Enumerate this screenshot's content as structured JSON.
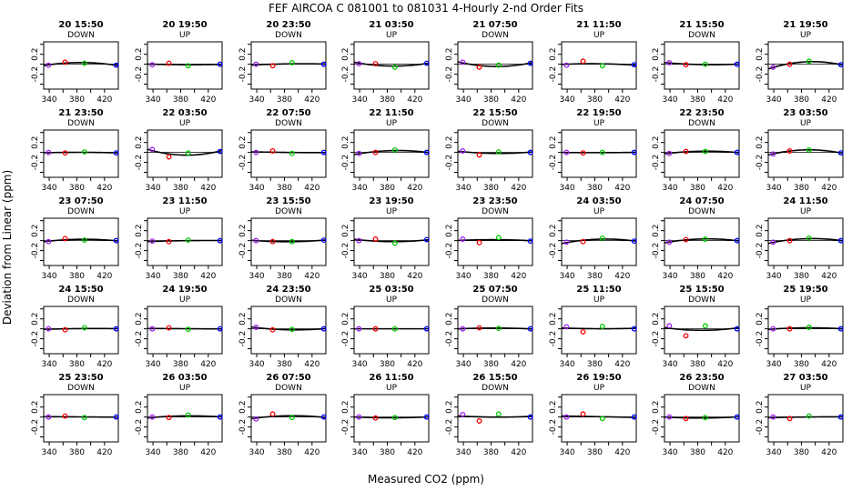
{
  "chart_data": {
    "type": "scatter",
    "title": "FEF   AIRCOA C   081001 to 081031   4-Hourly 2-nd Order Fits",
    "xlabel": "Measured CO2 (ppm)",
    "ylabel": "Deviation from Linear (ppm)",
    "xlim": [
      332,
      440
    ],
    "ylim": [
      -0.5,
      0.45
    ],
    "xticks": [
      "340",
      "380",
      "420"
    ],
    "xticks_minor": [
      "360",
      "400"
    ],
    "yticks": [
      "0.2",
      "-0.2"
    ],
    "yticks_minor": [
      "0.4",
      "0.0",
      "-0.4"
    ],
    "standards_x": [
      339,
      363,
      391,
      437
    ],
    "standard_colors": [
      "#a020f0",
      "#ff0000",
      "#00cc00",
      "#0000ff"
    ],
    "fit_color": "#000000",
    "panels": [
      {
        "label": "20 15:50",
        "dir": "DOWN",
        "dev": [
          -0.02,
          0.04,
          0.02,
          -0.02
        ]
      },
      {
        "label": "20 19:50",
        "dir": "UP",
        "dev": [
          -0.01,
          0.02,
          -0.03,
          0.0
        ]
      },
      {
        "label": "20 23:50",
        "dir": "DOWN",
        "dev": [
          0.0,
          -0.03,
          0.03,
          0.0
        ]
      },
      {
        "label": "21 03:50",
        "dir": "UP",
        "dev": [
          0.01,
          0.01,
          -0.06,
          0.02
        ]
      },
      {
        "label": "21 07:50",
        "dir": "DOWN",
        "dev": [
          0.04,
          -0.06,
          -0.02,
          0.02
        ]
      },
      {
        "label": "21 11:50",
        "dir": "UP",
        "dev": [
          -0.02,
          0.06,
          -0.03,
          -0.01
        ]
      },
      {
        "label": "21 15:50",
        "dir": "DOWN",
        "dev": [
          0.03,
          -0.01,
          0.0,
          0.0
        ]
      },
      {
        "label": "21 19:50",
        "dir": "UP",
        "dev": [
          -0.06,
          0.0,
          0.06,
          -0.01
        ]
      },
      {
        "label": "21 23:50",
        "dir": "DOWN",
        "dev": [
          0.0,
          -0.01,
          0.01,
          -0.01
        ]
      },
      {
        "label": "22 03:50",
        "dir": "UP",
        "dev": [
          0.06,
          -0.09,
          -0.01,
          0.02
        ]
      },
      {
        "label": "22 07:50",
        "dir": "DOWN",
        "dev": [
          0.0,
          0.03,
          -0.02,
          0.0
        ]
      },
      {
        "label": "22 11:50",
        "dir": "UP",
        "dev": [
          -0.02,
          0.0,
          0.05,
          0.0
        ]
      },
      {
        "label": "22 15:50",
        "dir": "DOWN",
        "dev": [
          0.03,
          -0.05,
          0.01,
          0.0
        ]
      },
      {
        "label": "22 19:50",
        "dir": "UP",
        "dev": [
          0.0,
          -0.01,
          0.0,
          0.0
        ]
      },
      {
        "label": "22 23:50",
        "dir": "DOWN",
        "dev": [
          -0.02,
          0.02,
          0.02,
          0.0
        ]
      },
      {
        "label": "23 03:50",
        "dir": "UP",
        "dev": [
          -0.03,
          0.03,
          0.05,
          -0.01
        ]
      },
      {
        "label": "23 07:50",
        "dir": "DOWN",
        "dev": [
          -0.02,
          0.04,
          0.01,
          0.0
        ]
      },
      {
        "label": "23 11:50",
        "dir": "UP",
        "dev": [
          -0.01,
          -0.02,
          0.01,
          0.0
        ]
      },
      {
        "label": "23 15:50",
        "dir": "DOWN",
        "dev": [
          0.0,
          -0.02,
          -0.02,
          0.01
        ]
      },
      {
        "label": "23 19:50",
        "dir": "UP",
        "dev": [
          0.0,
          0.03,
          -0.05,
          0.02
        ]
      },
      {
        "label": "23 23:50",
        "dir": "DOWN",
        "dev": [
          0.03,
          -0.04,
          0.06,
          -0.01
        ]
      },
      {
        "label": "24 03:50",
        "dir": "UP",
        "dev": [
          -0.03,
          -0.02,
          0.05,
          -0.01
        ]
      },
      {
        "label": "24 07:50",
        "dir": "DOWN",
        "dev": [
          -0.03,
          0.02,
          0.03,
          0.0
        ]
      },
      {
        "label": "24 11:50",
        "dir": "UP",
        "dev": [
          -0.03,
          0.0,
          0.05,
          0.0
        ]
      },
      {
        "label": "24 15:50",
        "dir": "DOWN",
        "dev": [
          0.0,
          -0.02,
          0.02,
          0.0
        ]
      },
      {
        "label": "24 19:50",
        "dir": "UP",
        "dev": [
          0.0,
          0.02,
          -0.01,
          0.0
        ]
      },
      {
        "label": "24 23:50",
        "dir": "DOWN",
        "dev": [
          0.03,
          -0.02,
          -0.01,
          0.0
        ]
      },
      {
        "label": "25 03:50",
        "dir": "UP",
        "dev": [
          0.0,
          0.0,
          0.0,
          0.0
        ]
      },
      {
        "label": "25 07:50",
        "dir": "DOWN",
        "dev": [
          0.0,
          0.02,
          0.01,
          0.0
        ]
      },
      {
        "label": "25 11:50",
        "dir": "UP",
        "dev": [
          0.04,
          -0.06,
          0.05,
          0.0
        ]
      },
      {
        "label": "25 15:50",
        "dir": "DOWN",
        "dev": [
          0.06,
          -0.14,
          0.06,
          0.0
        ]
      },
      {
        "label": "25 19:50",
        "dir": "UP",
        "dev": [
          0.0,
          0.0,
          0.03,
          0.0
        ]
      },
      {
        "label": "25 23:50",
        "dir": "DOWN",
        "dev": [
          0.0,
          0.02,
          -0.01,
          0.0
        ]
      },
      {
        "label": "26 03:50",
        "dir": "UP",
        "dev": [
          0.0,
          -0.01,
          0.04,
          0.0
        ]
      },
      {
        "label": "26 07:50",
        "dir": "DOWN",
        "dev": [
          -0.04,
          0.06,
          -0.01,
          0.0
        ]
      },
      {
        "label": "26 11:50",
        "dir": "UP",
        "dev": [
          0.0,
          -0.02,
          -0.01,
          0.0
        ]
      },
      {
        "label": "26 15:50",
        "dir": "DOWN",
        "dev": [
          0.05,
          -0.08,
          0.06,
          0.0
        ]
      },
      {
        "label": "26 19:50",
        "dir": "UP",
        "dev": [
          0.0,
          0.06,
          -0.03,
          0.0
        ]
      },
      {
        "label": "26 23:50",
        "dir": "DOWN",
        "dev": [
          0.0,
          -0.03,
          -0.01,
          0.0
        ]
      },
      {
        "label": "27 03:50",
        "dir": "UP",
        "dev": [
          0.0,
          -0.03,
          0.02,
          0.0
        ]
      }
    ]
  }
}
